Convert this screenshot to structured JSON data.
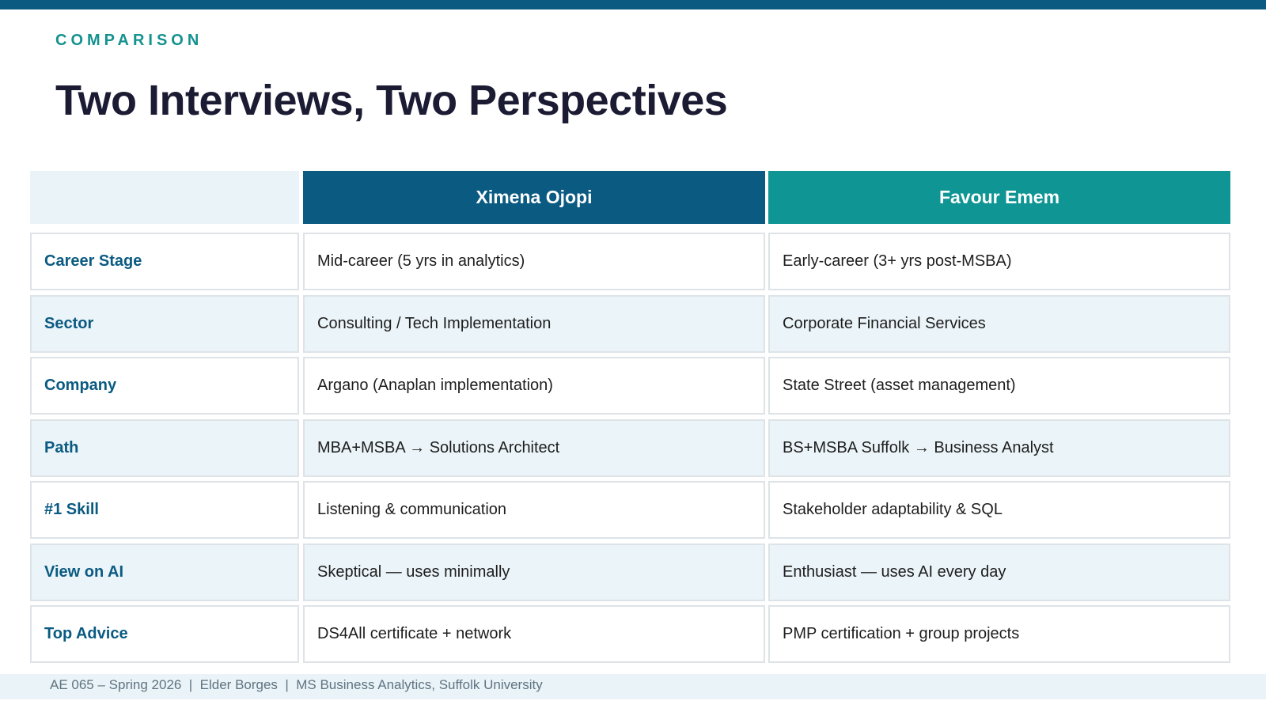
{
  "header": {
    "kicker": "COMPARISON",
    "title": "Two Interviews, Two Perspectives"
  },
  "table": {
    "columns": [
      "Ximena Ojopi",
      "Favour Emem"
    ],
    "rows": [
      [
        "Career Stage",
        "Mid-career (5 yrs in analytics)",
        "Early-career (3+ yrs post-MSBA)"
      ],
      [
        "Sector",
        "Consulting / Tech Implementation",
        "Corporate Financial Services"
      ],
      [
        "Company",
        "Argano (Anaplan implementation)",
        "State Street (asset management)"
      ],
      [
        "Path",
        "MBA+MSBA → Solutions Architect",
        "BS+MSBA Suffolk → Business Analyst"
      ],
      [
        "#1 Skill",
        "Listening & communication",
        "Stakeholder adaptability & SQL"
      ],
      [
        "View on AI",
        "Skeptical — uses minimally",
        "Enthusiast — uses AI every day"
      ],
      [
        "Top Advice",
        "DS4All certificate + network",
        "PMP certification + group projects"
      ]
    ]
  },
  "footer": {
    "text": "AE 065 – Spring 2026  |  Elder Borges  |  MS Business Analytics, Suffolk University"
  }
}
